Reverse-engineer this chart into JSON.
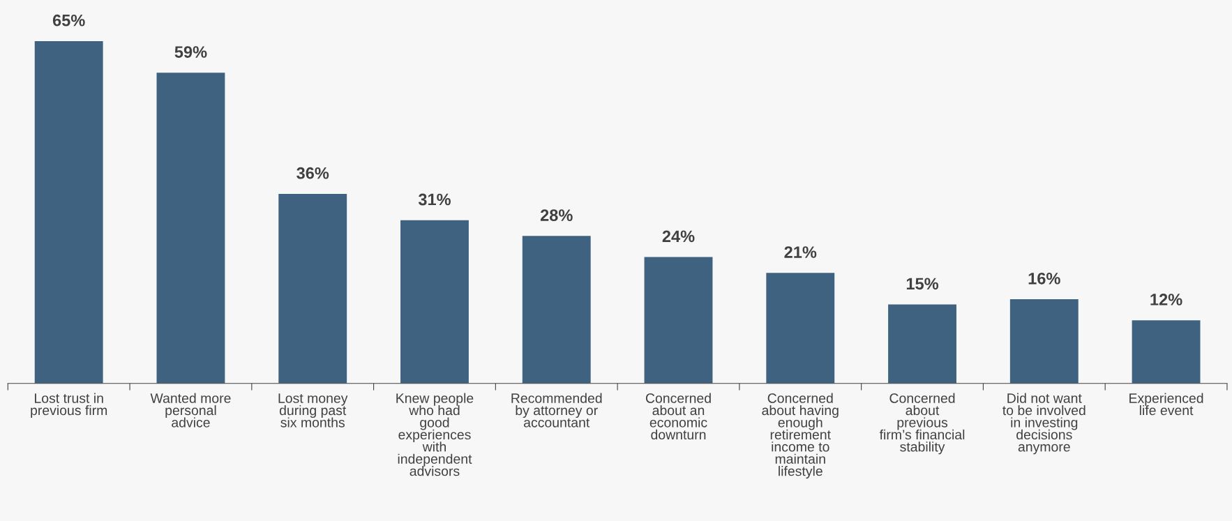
{
  "chart_data": {
    "type": "bar",
    "categories": [
      "Lost trust in\nprevious firm",
      "Wanted more\npersonal\nadvice",
      "Lost money\nduring past\nsix months",
      "Knew people\nwho had\ngood\nexperiences\nwith\nindependent\nadvisors",
      "Recommended\nby attorney or\naccountant",
      "Concerned\nabout an\neconomic\ndownturn",
      "Concerned\nabout having\nenough\nretirement\nincome to\nmaintain\nlifestyle",
      "Concerned\nabout\nprevious\nfirm’s financial\nstability",
      "Did not want\nto be involved\nin investing\ndecisions\nanymore",
      "Experienced\nlife event"
    ],
    "values": [
      65,
      59,
      36,
      31,
      28,
      24,
      21,
      15,
      16,
      12
    ],
    "value_labels": [
      "65%",
      "59%",
      "36%",
      "31%",
      "28%",
      "24%",
      "21%",
      "15%",
      "16%",
      "12%"
    ],
    "color": "#3f6280"
  }
}
